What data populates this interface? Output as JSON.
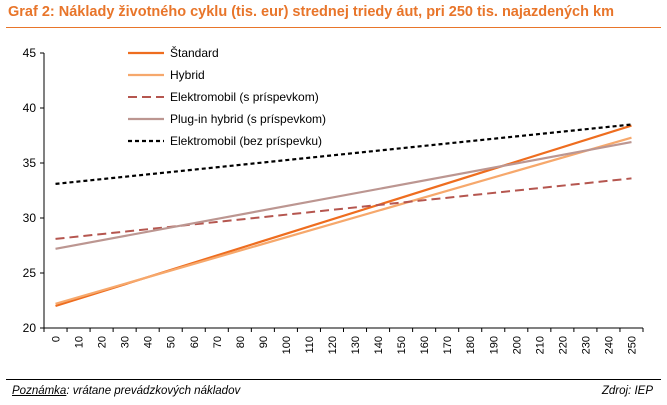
{
  "header": {
    "title": "Graf 2: Náklady životného cyklu (tis. eur) strednej triedy áut, pri 250 tis. najazdených km"
  },
  "footer": {
    "note_label": "Poznámka",
    "note_text": ": vrátane prevádzkových nákladov",
    "source": "Zdroj: IEP"
  },
  "chart_data": {
    "type": "line",
    "title": "Graf 2: Náklady životného cyklu (tis. eur) strednej triedy áut, pri 250 tis. najazdených km",
    "xlabel": "",
    "ylabel": "",
    "x": [
      0,
      10,
      20,
      30,
      40,
      50,
      60,
      70,
      80,
      90,
      100,
      110,
      120,
      130,
      140,
      150,
      160,
      170,
      180,
      190,
      200,
      210,
      220,
      230,
      240,
      250
    ],
    "x_tick_labels": [
      "0",
      "10",
      "20",
      "30",
      "40",
      "50",
      "60",
      "70",
      "80",
      "90",
      "100",
      "110",
      "120",
      "130",
      "140",
      "150",
      "160",
      "170",
      "180",
      "190",
      "200",
      "210",
      "220",
      "230",
      "240",
      "250"
    ],
    "ylim": [
      20,
      45
    ],
    "y_ticks": [
      20,
      25,
      30,
      35,
      40,
      45
    ],
    "y_tick_labels": [
      "20",
      "25",
      "30",
      "35",
      "40",
      "45"
    ],
    "grid": false,
    "legend_position": "top-left",
    "series": [
      {
        "name": "Štandard",
        "start": 22.0,
        "end": 38.4,
        "color": "#ee6d1f",
        "dash": "solid",
        "width": 2.2
      },
      {
        "name": "Hybrid",
        "start": 22.2,
        "end": 37.3,
        "color": "#f6a86c",
        "dash": "solid",
        "width": 2.2
      },
      {
        "name": "Elektromobil (s príspevkom)",
        "start": 28.1,
        "end": 33.6,
        "color": "#b5564f",
        "dash": "dashed",
        "width": 2.0
      },
      {
        "name": "Plug-in hybrid (s príspevkom)",
        "start": 27.2,
        "end": 36.9,
        "color": "#bc9691",
        "dash": "solid",
        "width": 2.2
      },
      {
        "name": "Elektromobil (bez príspevku)",
        "start": 33.1,
        "end": 38.5,
        "color": "#000000",
        "dash": "dotted",
        "width": 2.2
      }
    ]
  }
}
